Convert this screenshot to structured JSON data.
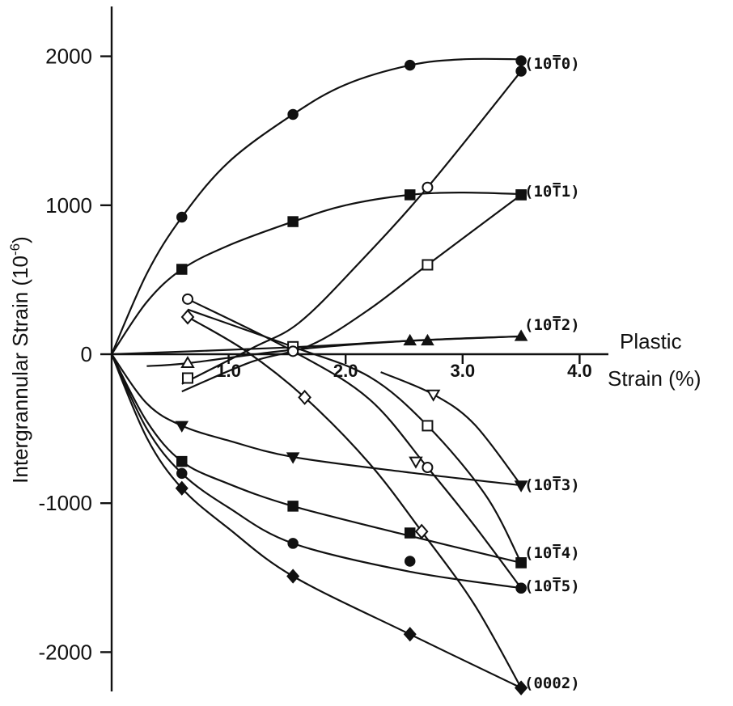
{
  "chart_data": {
    "type": "scatter",
    "ylabel": "Intergrannular Strain (10",
    "ylabel_exp": "-6",
    "ylabel_close": ")",
    "xlabel_line1": "Plastic",
    "xlabel_line2": "Strain (%)",
    "xlim": [
      0,
      4.2
    ],
    "ylim": [
      -2200,
      2350
    ],
    "x_ticks": [
      {
        "value": 1.0,
        "label": "1.0"
      },
      {
        "value": 2.0,
        "label": "2.0"
      },
      {
        "value": 3.0,
        "label": "3.0"
      },
      {
        "value": 4.0,
        "label": "4.0"
      }
    ],
    "y_ticks": [
      {
        "value": 2000,
        "label": "2000"
      },
      {
        "value": 1000,
        "label": "1000"
      },
      {
        "value": 0,
        "label": "0"
      },
      {
        "value": -1000,
        "label": "-1000"
      },
      {
        "value": -2000,
        "label": "-2000"
      }
    ],
    "series": [
      {
        "name": "(10T0)",
        "marker": "circle",
        "loading_points": [
          [
            0,
            0
          ],
          [
            0.6,
            920
          ],
          [
            1.55,
            1610
          ],
          [
            2.55,
            1940
          ],
          [
            3.5,
            1970
          ]
        ],
        "loading_curve": [
          [
            0,
            0
          ],
          [
            0.3,
            540
          ],
          [
            0.6,
            920
          ],
          [
            1.0,
            1290
          ],
          [
            1.55,
            1610
          ],
          [
            2.0,
            1810
          ],
          [
            2.55,
            1940
          ],
          [
            3.0,
            1980
          ],
          [
            3.5,
            1980
          ]
        ],
        "unloading_points": [
          [
            2.7,
            1120
          ],
          [
            3.5,
            1900
          ]
        ],
        "unloading_curve": [
          [
            0.6,
            -200
          ],
          [
            1.2,
            40
          ],
          [
            1.6,
            210
          ],
          [
            2.1,
            600
          ],
          [
            2.7,
            1120
          ],
          [
            3.5,
            1900
          ]
        ]
      },
      {
        "name": "(10T1)",
        "marker": "square",
        "loading_points": [
          [
            0,
            0
          ],
          [
            0.6,
            570
          ],
          [
            1.55,
            890
          ],
          [
            2.55,
            1070
          ],
          [
            3.5,
            1070
          ]
        ],
        "loading_curve": [
          [
            0,
            0
          ],
          [
            0.3,
            350
          ],
          [
            0.6,
            570
          ],
          [
            1.0,
            730
          ],
          [
            1.55,
            890
          ],
          [
            2.0,
            1000
          ],
          [
            2.55,
            1070
          ],
          [
            3.0,
            1085
          ],
          [
            3.5,
            1075
          ]
        ],
        "unloading_points": [
          [
            2.7,
            600
          ],
          [
            3.5,
            1070
          ]
        ],
        "unloading_curve": [
          [
            0.6,
            -250
          ],
          [
            1.2,
            -50
          ],
          [
            1.7,
            60
          ],
          [
            2.2,
            300
          ],
          [
            2.7,
            600
          ],
          [
            3.5,
            1070
          ]
        ]
      },
      {
        "name": "(10T2)",
        "marker": "triangle-up",
        "loading_points": [
          [
            0,
            0
          ],
          [
            2.55,
            90
          ],
          [
            2.7,
            90
          ],
          [
            3.5,
            120
          ]
        ],
        "loading_curve": [
          [
            0,
            0
          ],
          [
            1.5,
            45
          ],
          [
            2.55,
            90
          ],
          [
            3.5,
            120
          ]
        ],
        "unloading_points": [
          [
            0.65,
            -60
          ],
          [
            1.55,
            30
          ]
        ],
        "unloading_curve": [
          [
            0.3,
            -80
          ],
          [
            0.65,
            -60
          ],
          [
            1.55,
            30
          ],
          [
            2.55,
            90
          ],
          [
            3.5,
            120
          ]
        ]
      },
      {
        "name": "(10T3)",
        "marker": "triangle-down",
        "loading_points": [
          [
            0,
            0
          ],
          [
            0.6,
            -480
          ],
          [
            1.55,
            -690
          ],
          [
            3.5,
            -880
          ]
        ],
        "loading_curve": [
          [
            0,
            0
          ],
          [
            0.3,
            -330
          ],
          [
            0.6,
            -480
          ],
          [
            1.0,
            -580
          ],
          [
            1.55,
            -690
          ],
          [
            2.5,
            -790
          ],
          [
            3.5,
            -880
          ]
        ],
        "unloading_points": [
          [
            2.6,
            -720
          ],
          [
            2.75,
            -270
          ],
          [
            3.5,
            -880
          ]
        ],
        "unloading_curve": [
          [
            2.3,
            -120
          ],
          [
            2.75,
            -270
          ],
          [
            3.1,
            -470
          ],
          [
            3.5,
            -880
          ]
        ]
      },
      {
        "name": "(10T4)",
        "marker": "square",
        "loading_points": [
          [
            0,
            0
          ],
          [
            0.6,
            -720
          ],
          [
            1.55,
            -1020
          ],
          [
            2.55,
            -1200
          ],
          [
            3.5,
            -1400
          ]
        ],
        "loading_curve": [
          [
            0,
            0
          ],
          [
            0.3,
            -450
          ],
          [
            0.6,
            -720
          ],
          [
            1.0,
            -870
          ],
          [
            1.55,
            -1020
          ],
          [
            2.55,
            -1220
          ],
          [
            3.5,
            -1400
          ]
        ],
        "unloading_points": [
          [
            0.65,
            -160
          ],
          [
            1.55,
            50
          ],
          [
            2.7,
            -480
          ],
          [
            3.5,
            -1400
          ]
        ],
        "unloading_curve": [
          [
            0.65,
            300
          ],
          [
            1.55,
            50
          ],
          [
            2.2,
            -150
          ],
          [
            2.7,
            -480
          ],
          [
            3.2,
            -950
          ],
          [
            3.5,
            -1400
          ]
        ]
      },
      {
        "name": "(10T5)",
        "marker": "circle",
        "loading_points": [
          [
            0,
            0
          ],
          [
            0.6,
            -800
          ],
          [
            1.55,
            -1270
          ],
          [
            2.55,
            -1390
          ],
          [
            3.5,
            -1570
          ]
        ],
        "loading_curve": [
          [
            0,
            0
          ],
          [
            0.3,
            -500
          ],
          [
            0.6,
            -800
          ],
          [
            1.0,
            -1030
          ],
          [
            1.55,
            -1270
          ],
          [
            2.55,
            -1460
          ],
          [
            3.5,
            -1570
          ]
        ],
        "unloading_points": [
          [
            0.65,
            370
          ],
          [
            1.55,
            20
          ],
          [
            2.7,
            -760
          ],
          [
            3.5,
            -1570
          ]
        ],
        "unloading_curve": [
          [
            0.65,
            370
          ],
          [
            1.55,
            20
          ],
          [
            2.2,
            -300
          ],
          [
            2.7,
            -760
          ],
          [
            3.1,
            -1150
          ],
          [
            3.5,
            -1570
          ]
        ]
      },
      {
        "name": "(0002)",
        "marker": "diamond",
        "loading_points": [
          [
            0,
            0
          ],
          [
            0.6,
            -900
          ],
          [
            1.55,
            -1490
          ],
          [
            2.55,
            -1880
          ],
          [
            3.5,
            -2240
          ]
        ],
        "loading_curve": [
          [
            0,
            0
          ],
          [
            0.3,
            -560
          ],
          [
            0.6,
            -900
          ],
          [
            1.0,
            -1170
          ],
          [
            1.55,
            -1490
          ],
          [
            2.55,
            -1880
          ],
          [
            3.5,
            -2240
          ]
        ],
        "unloading_points": [
          [
            0.65,
            250
          ],
          [
            1.65,
            -290
          ],
          [
            2.65,
            -1190
          ],
          [
            3.5,
            -2240
          ]
        ],
        "unloading_curve": [
          [
            0.65,
            250
          ],
          [
            1.15,
            20
          ],
          [
            1.65,
            -290
          ],
          [
            2.2,
            -730
          ],
          [
            2.65,
            -1190
          ],
          [
            3.1,
            -1680
          ],
          [
            3.5,
            -2240
          ]
        ]
      }
    ]
  }
}
